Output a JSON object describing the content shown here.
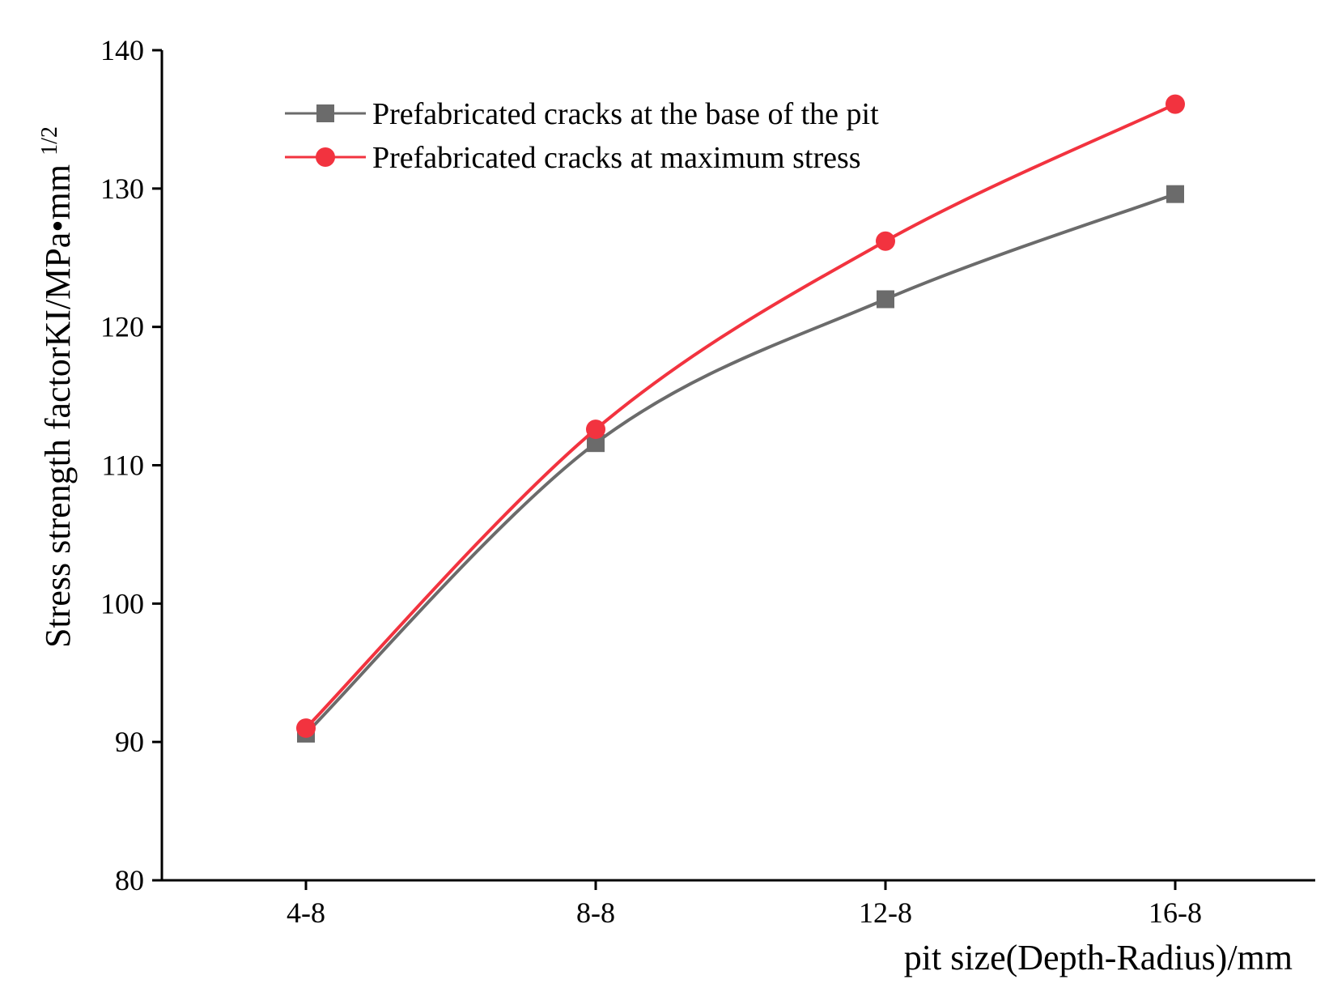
{
  "chart_data": {
    "type": "line",
    "categories": [
      "4-8",
      "8-8",
      "12-8",
      "16-8"
    ],
    "xlabel": "pit size(Depth-Radius)/mm",
    "ylabel": {
      "main": "Stress strength factorKI/MPa•mm",
      "superscript": "1/2"
    },
    "ylim": [
      80,
      140
    ],
    "yticks": [
      80,
      90,
      100,
      110,
      120,
      130,
      140
    ],
    "grid": false,
    "legend_position": "top-left",
    "series": [
      {
        "name": "Prefabricated cracks at the base of the pit",
        "marker": "square",
        "color": "#6b6b6b",
        "values": [
          90.6,
          111.6,
          122.0,
          129.6
        ]
      },
      {
        "name": "Prefabricated cracks at maximum stress",
        "marker": "circle",
        "color": "#f2333f",
        "values": [
          91.0,
          112.6,
          126.2,
          136.1
        ]
      }
    ]
  }
}
